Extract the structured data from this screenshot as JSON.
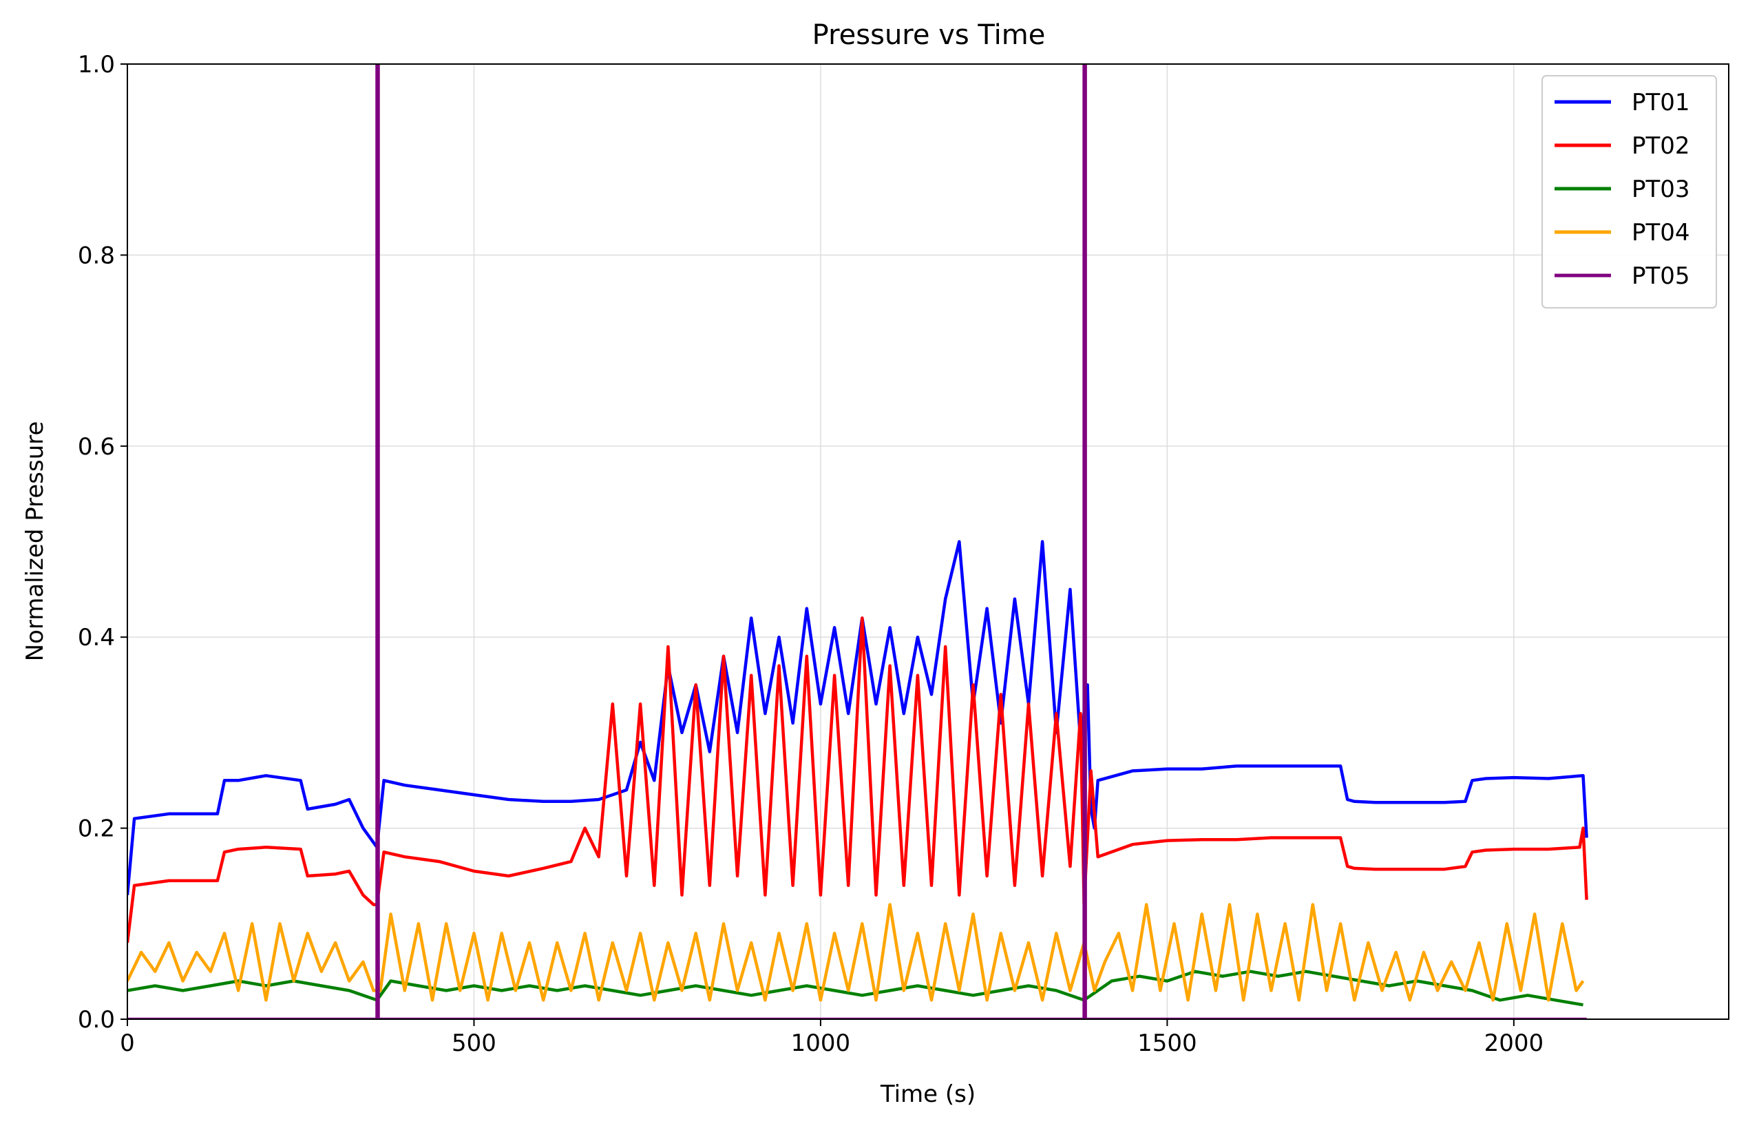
{
  "chart_data": {
    "type": "line",
    "title": "Pressure vs Time",
    "xlabel": "Time (s)",
    "ylabel": "Normalized Pressure",
    "xlim": [
      0,
      2310
    ],
    "ylim": [
      0,
      1.0
    ],
    "xticks": [
      0,
      500,
      1000,
      1500,
      2000
    ],
    "xtick_labels": [
      "0",
      "500",
      "1000",
      "1500",
      "2000"
    ],
    "yticks": [
      0,
      0.2,
      0.4,
      0.6,
      0.8,
      1.0
    ],
    "ytick_labels": [
      "0.0",
      "0.2",
      "0.4",
      "0.6",
      "0.8",
      "1.0"
    ],
    "grid": true,
    "legend_position": "top-right",
    "series": [
      {
        "name": "PT01",
        "color": "#0000ff",
        "x": [
          0,
          10,
          60,
          130,
          140,
          160,
          200,
          250,
          260,
          300,
          320,
          340,
          355,
          360,
          370,
          400,
          450,
          500,
          550,
          600,
          640,
          680,
          700,
          720,
          740,
          760,
          780,
          800,
          820,
          840,
          860,
          880,
          900,
          920,
          940,
          960,
          980,
          1000,
          1020,
          1040,
          1060,
          1080,
          1100,
          1120,
          1140,
          1160,
          1180,
          1200,
          1220,
          1240,
          1260,
          1280,
          1300,
          1320,
          1340,
          1360,
          1375,
          1385,
          1390,
          1395,
          1400,
          1450,
          1500,
          1550,
          1600,
          1650,
          1700,
          1750,
          1760,
          1770,
          1800,
          1850,
          1900,
          1930,
          1940,
          1960,
          2000,
          2050,
          2100,
          2105
        ],
        "y": [
          0.13,
          0.21,
          0.215,
          0.215,
          0.25,
          0.25,
          0.255,
          0.25,
          0.22,
          0.225,
          0.23,
          0.2,
          0.185,
          0.18,
          0.25,
          0.245,
          0.24,
          0.235,
          0.23,
          0.228,
          0.228,
          0.23,
          0.235,
          0.24,
          0.29,
          0.25,
          0.37,
          0.3,
          0.35,
          0.28,
          0.38,
          0.3,
          0.42,
          0.32,
          0.4,
          0.31,
          0.43,
          0.33,
          0.41,
          0.32,
          0.42,
          0.33,
          0.41,
          0.32,
          0.4,
          0.34,
          0.44,
          0.5,
          0.33,
          0.43,
          0.31,
          0.44,
          0.33,
          0.5,
          0.3,
          0.45,
          0.29,
          0.35,
          0.22,
          0.2,
          0.25,
          0.26,
          0.262,
          0.262,
          0.265,
          0.265,
          0.265,
          0.265,
          0.23,
          0.228,
          0.227,
          0.227,
          0.227,
          0.228,
          0.25,
          0.252,
          0.253,
          0.252,
          0.255,
          0.19
        ]
      },
      {
        "name": "PT02",
        "color": "#ff0000",
        "x": [
          0,
          10,
          60,
          130,
          140,
          160,
          200,
          250,
          260,
          300,
          320,
          340,
          355,
          360,
          370,
          400,
          450,
          500,
          550,
          600,
          640,
          660,
          680,
          700,
          720,
          740,
          760,
          780,
          800,
          820,
          840,
          860,
          880,
          900,
          920,
          940,
          960,
          980,
          1000,
          1020,
          1040,
          1060,
          1080,
          1100,
          1120,
          1140,
          1160,
          1180,
          1200,
          1220,
          1240,
          1260,
          1280,
          1300,
          1320,
          1340,
          1360,
          1375,
          1380,
          1390,
          1400,
          1450,
          1500,
          1550,
          1600,
          1650,
          1700,
          1750,
          1760,
          1770,
          1800,
          1850,
          1900,
          1930,
          1940,
          1960,
          2000,
          2050,
          2095,
          2100,
          2105
        ],
        "y": [
          0.08,
          0.14,
          0.145,
          0.145,
          0.175,
          0.178,
          0.18,
          0.178,
          0.15,
          0.152,
          0.155,
          0.13,
          0.12,
          0.12,
          0.175,
          0.17,
          0.165,
          0.155,
          0.15,
          0.158,
          0.165,
          0.2,
          0.17,
          0.33,
          0.15,
          0.33,
          0.14,
          0.39,
          0.13,
          0.35,
          0.14,
          0.38,
          0.15,
          0.36,
          0.13,
          0.37,
          0.14,
          0.38,
          0.13,
          0.36,
          0.14,
          0.42,
          0.13,
          0.37,
          0.14,
          0.36,
          0.14,
          0.39,
          0.13,
          0.35,
          0.15,
          0.34,
          0.14,
          0.33,
          0.15,
          0.32,
          0.16,
          0.32,
          0.12,
          0.26,
          0.17,
          0.183,
          0.187,
          0.188,
          0.188,
          0.19,
          0.19,
          0.19,
          0.16,
          0.158,
          0.157,
          0.157,
          0.157,
          0.16,
          0.175,
          0.177,
          0.178,
          0.178,
          0.18,
          0.2,
          0.125
        ]
      },
      {
        "name": "PT03",
        "color": "#008000",
        "x": [
          0,
          40,
          80,
          120,
          160,
          200,
          240,
          280,
          320,
          360,
          380,
          420,
          460,
          500,
          540,
          580,
          620,
          660,
          700,
          740,
          780,
          820,
          860,
          900,
          940,
          980,
          1020,
          1060,
          1100,
          1140,
          1180,
          1220,
          1260,
          1300,
          1340,
          1380,
          1420,
          1460,
          1500,
          1540,
          1580,
          1620,
          1660,
          1700,
          1740,
          1780,
          1820,
          1860,
          1900,
          1940,
          1980,
          2020,
          2060,
          2100
        ],
        "y": [
          0.03,
          0.035,
          0.03,
          0.035,
          0.04,
          0.035,
          0.04,
          0.035,
          0.03,
          0.02,
          0.04,
          0.035,
          0.03,
          0.035,
          0.03,
          0.035,
          0.03,
          0.035,
          0.03,
          0.025,
          0.03,
          0.035,
          0.03,
          0.025,
          0.03,
          0.035,
          0.03,
          0.025,
          0.03,
          0.035,
          0.03,
          0.025,
          0.03,
          0.035,
          0.03,
          0.02,
          0.04,
          0.045,
          0.04,
          0.05,
          0.045,
          0.05,
          0.045,
          0.05,
          0.045,
          0.04,
          0.035,
          0.04,
          0.035,
          0.03,
          0.02,
          0.025,
          0.02,
          0.015
        ]
      },
      {
        "name": "PT04",
        "color": "#ffa500",
        "x": [
          0,
          20,
          40,
          60,
          80,
          100,
          120,
          140,
          160,
          180,
          200,
          220,
          240,
          260,
          280,
          300,
          320,
          340,
          355,
          365,
          380,
          400,
          420,
          440,
          460,
          480,
          500,
          520,
          540,
          560,
          580,
          600,
          620,
          640,
          660,
          680,
          700,
          720,
          740,
          760,
          780,
          800,
          820,
          840,
          860,
          880,
          900,
          920,
          940,
          960,
          980,
          1000,
          1020,
          1040,
          1060,
          1080,
          1100,
          1120,
          1140,
          1160,
          1180,
          1200,
          1220,
          1240,
          1260,
          1280,
          1300,
          1320,
          1340,
          1360,
          1380,
          1395,
          1410,
          1430,
          1450,
          1470,
          1490,
          1510,
          1530,
          1550,
          1570,
          1590,
          1610,
          1630,
          1650,
          1670,
          1690,
          1710,
          1730,
          1750,
          1770,
          1790,
          1810,
          1830,
          1850,
          1870,
          1890,
          1910,
          1930,
          1950,
          1970,
          1990,
          2010,
          2030,
          2050,
          2070,
          2090,
          2100
        ],
        "y": [
          0.04,
          0.07,
          0.05,
          0.08,
          0.04,
          0.07,
          0.05,
          0.09,
          0.03,
          0.1,
          0.02,
          0.1,
          0.04,
          0.09,
          0.05,
          0.08,
          0.04,
          0.06,
          0.03,
          0.03,
          0.11,
          0.03,
          0.1,
          0.02,
          0.1,
          0.03,
          0.09,
          0.02,
          0.09,
          0.03,
          0.08,
          0.02,
          0.08,
          0.03,
          0.09,
          0.02,
          0.08,
          0.03,
          0.09,
          0.02,
          0.08,
          0.03,
          0.09,
          0.02,
          0.1,
          0.03,
          0.08,
          0.02,
          0.09,
          0.03,
          0.1,
          0.02,
          0.09,
          0.03,
          0.1,
          0.02,
          0.12,
          0.03,
          0.09,
          0.02,
          0.1,
          0.03,
          0.11,
          0.02,
          0.09,
          0.03,
          0.08,
          0.02,
          0.09,
          0.03,
          0.08,
          0.03,
          0.06,
          0.09,
          0.03,
          0.12,
          0.03,
          0.1,
          0.02,
          0.11,
          0.03,
          0.12,
          0.02,
          0.11,
          0.03,
          0.1,
          0.02,
          0.12,
          0.03,
          0.1,
          0.02,
          0.08,
          0.03,
          0.07,
          0.02,
          0.07,
          0.03,
          0.06,
          0.03,
          0.08,
          0.02,
          0.1,
          0.03,
          0.11,
          0.02,
          0.1,
          0.03,
          0.04
        ]
      },
      {
        "name": "PT05",
        "color": "#800080",
        "x": [
          0,
          360,
          360,
          362,
          362,
          1380,
          1380,
          1382,
          1382,
          2105
        ],
        "y": [
          0,
          0,
          1.0,
          1.0,
          0,
          0,
          1.0,
          1.0,
          0,
          0
        ]
      }
    ]
  }
}
